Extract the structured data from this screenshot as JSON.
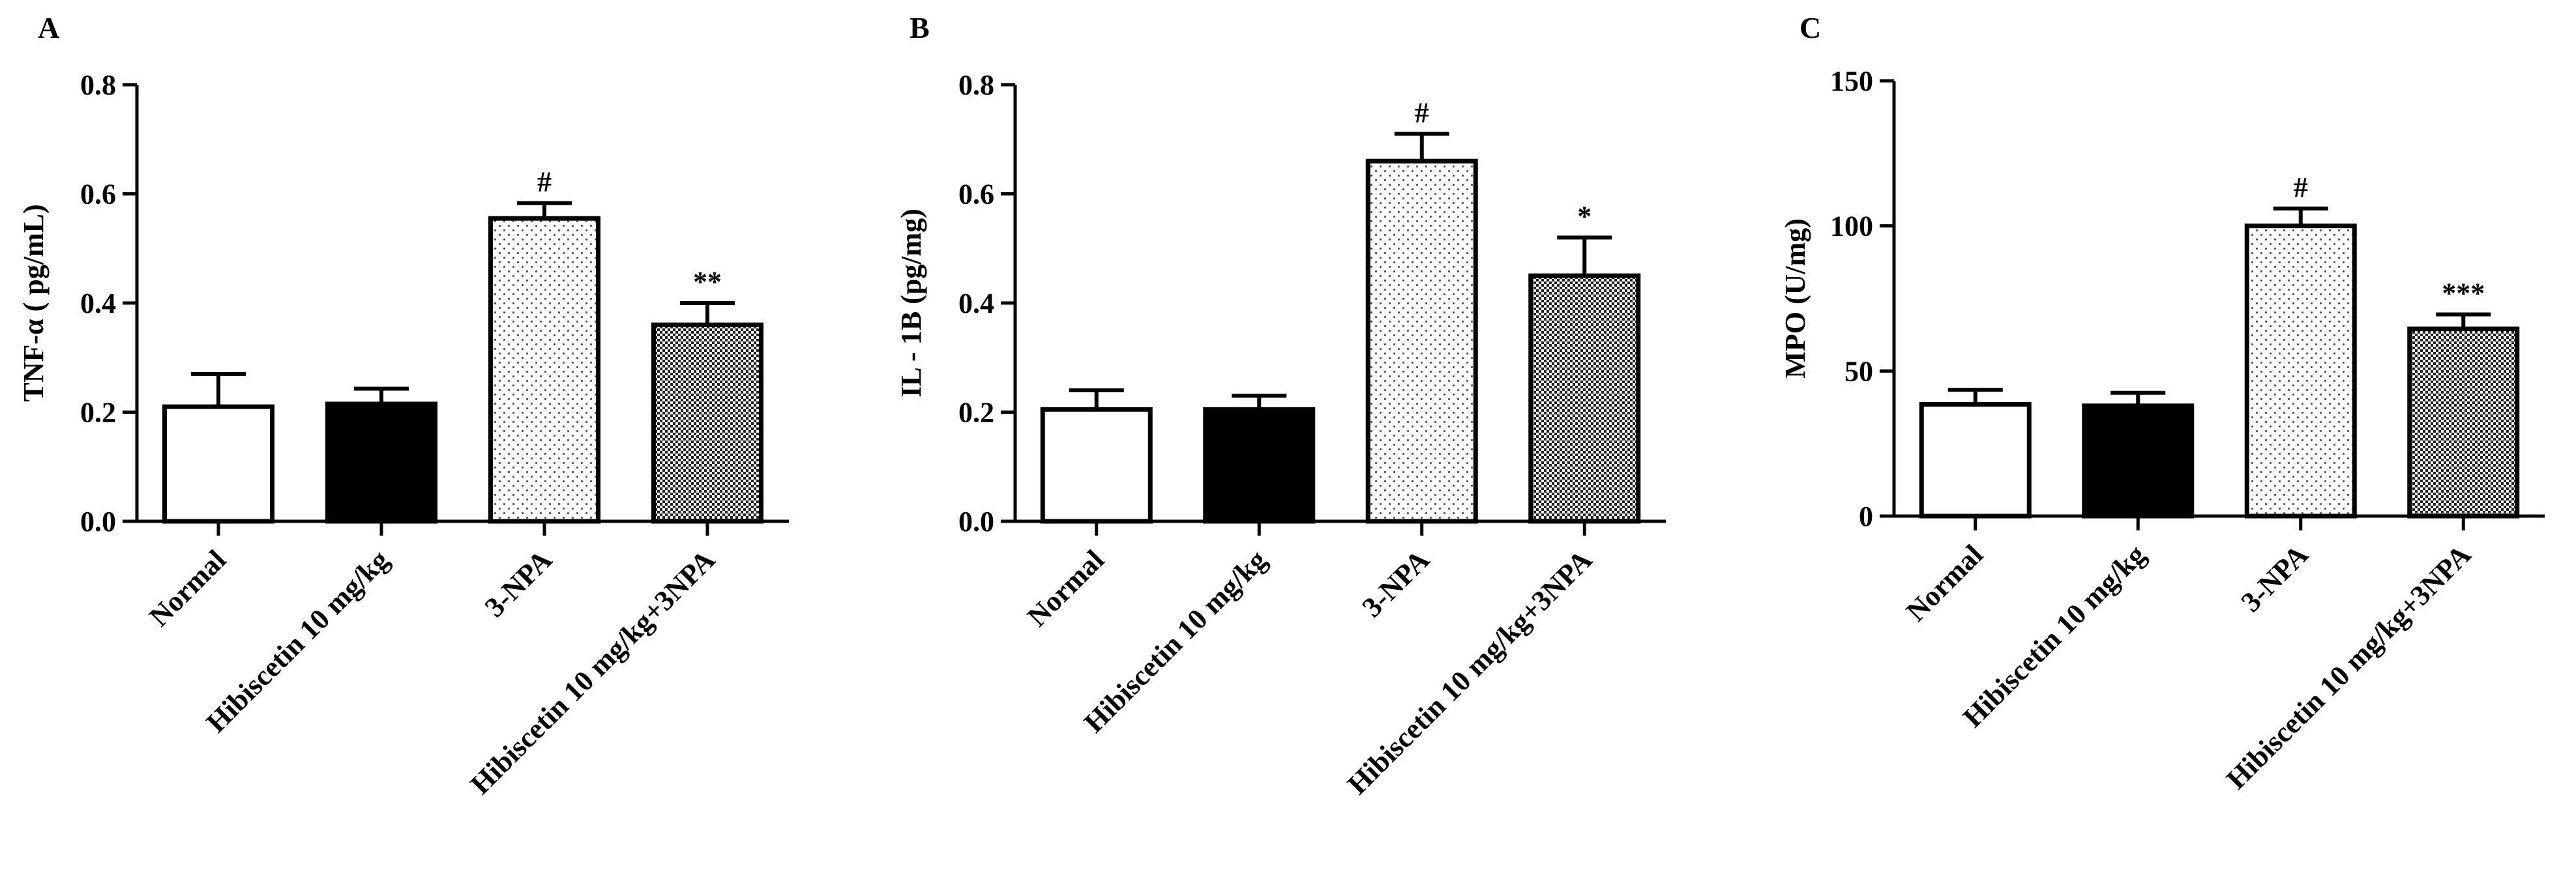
{
  "chart_data": [
    {
      "type": "bar",
      "panel_label": "A",
      "ylabel": "TNF-α ( pg/mL)",
      "ylim": [
        0,
        0.8
      ],
      "yticks": [
        "0.0",
        "0.2",
        "0.4",
        "0.6",
        "0.8"
      ],
      "tick_values": [
        0,
        0.2,
        0.4,
        0.6,
        0.8
      ],
      "categories": [
        "Normal",
        "Hibiscetin 10 mg/kg",
        "3-NPA",
        "Hibiscetin 10 mg/kg+3NPA"
      ],
      "values": [
        0.21,
        0.215,
        0.555,
        0.36
      ],
      "errors": [
        0.06,
        0.028,
        0.028,
        0.04
      ],
      "annotations": [
        "",
        "",
        "#",
        "**"
      ]
    },
    {
      "type": "bar",
      "panel_label": "B",
      "ylabel": "IL - 1B (pg/mg)",
      "ylim": [
        0,
        0.8
      ],
      "yticks": [
        "0.0",
        "0.2",
        "0.4",
        "0.6",
        "0.8"
      ],
      "tick_values": [
        0,
        0.2,
        0.4,
        0.6,
        0.8
      ],
      "categories": [
        "Normal",
        "Hibiscetin 10 mg/kg",
        "3-NPA",
        "Hibiscetin 10 mg/kg+3NPA"
      ],
      "values": [
        0.205,
        0.205,
        0.66,
        0.45
      ],
      "errors": [
        0.035,
        0.025,
        0.05,
        0.07
      ],
      "annotations": [
        "",
        "",
        "#",
        "*"
      ]
    },
    {
      "type": "bar",
      "panel_label": "C",
      "ylabel": "MPO (U/mg)",
      "ylim": [
        0,
        150
      ],
      "yticks": [
        "0",
        "50",
        "100",
        "150"
      ],
      "tick_values": [
        0,
        50,
        100,
        150
      ],
      "categories": [
        "Normal",
        "Hibiscetin 10 mg/kg",
        "3-NPA",
        "Hibiscetin 10 mg/kg+3NPA"
      ],
      "values": [
        38.5,
        38,
        100,
        64.5
      ],
      "errors": [
        5,
        4.5,
        6,
        5
      ],
      "annotations": [
        "",
        "",
        "#",
        "***"
      ]
    }
  ],
  "bar_fills": [
    "white",
    "black",
    "light-dots",
    "dense-checker"
  ],
  "colors": {
    "ink": "#000000",
    "background": "#ffffff"
  }
}
